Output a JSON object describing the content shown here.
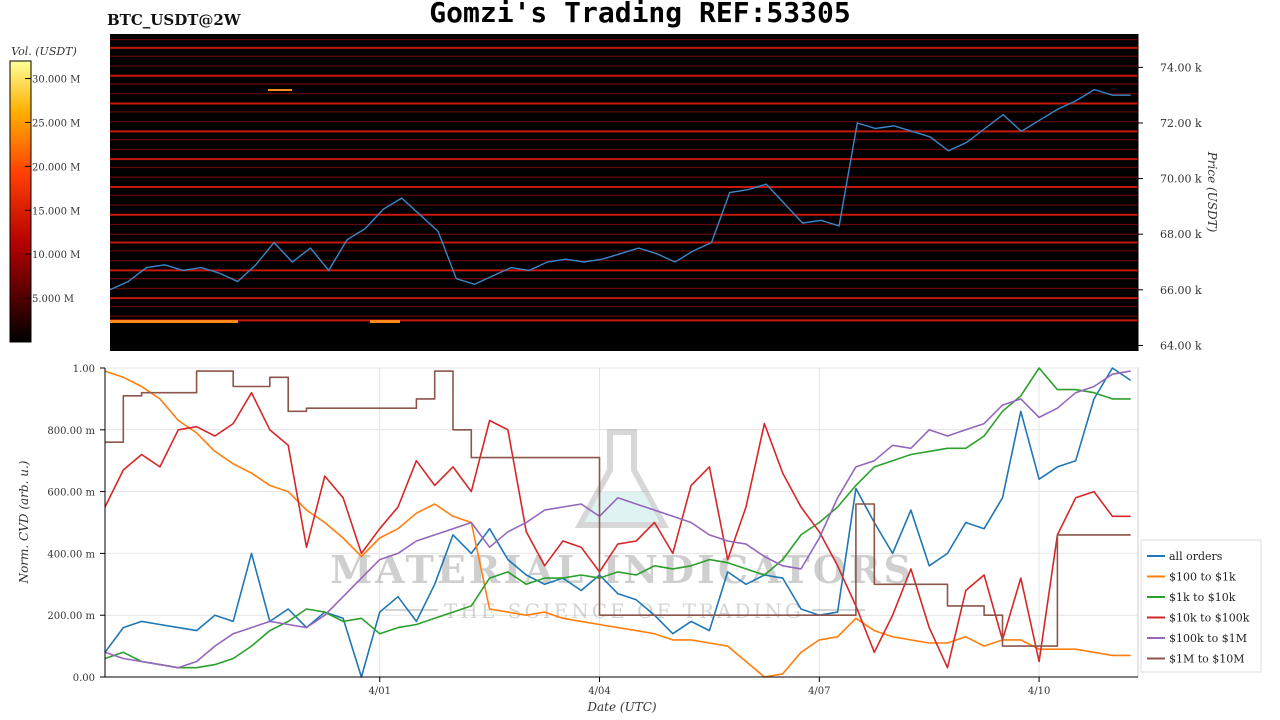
{
  "header": {
    "title": "Gomzi's Trading REF:53305",
    "symbol": "BTC_USDT@2W"
  },
  "colors": {
    "heatmap_bg": "#000000",
    "price_line": "#3a86c8",
    "series": [
      "#1f77b4",
      "#ff7f0e",
      "#2ca02c",
      "#d62728",
      "#9467bd",
      "#8c564b"
    ]
  },
  "watermark": {
    "brand": "MATERIAL INDICATORS",
    "tagline": "THE SCIENCE OF TRADING"
  },
  "chart_data": [
    {
      "type": "heatmap",
      "title": "",
      "ylabel": "Price (USDT)",
      "ylim": [
        63800,
        75200
      ],
      "y_ticks": [
        64000,
        66000,
        68000,
        70000,
        72000,
        74000
      ],
      "y_tick_labels": [
        "64.00 k",
        "66.00 k",
        "68.00 k",
        "70.00 k",
        "72.00 k",
        "74.00 k"
      ],
      "colorbar": {
        "label": "Vol. (USDT)",
        "ticks": [
          "5.000 M",
          "10.000 M",
          "15.000 M",
          "20.000 M",
          "25.000 M",
          "30.000 M"
        ],
        "tick_values": [
          5,
          10,
          15,
          20,
          25,
          30
        ],
        "range": [
          0,
          32
        ]
      },
      "liquidity_levels": [
        64900,
        65050,
        65400,
        65700,
        66050,
        66400,
        66700,
        67050,
        67400,
        67700,
        68000,
        68350,
        68700,
        69050,
        69400,
        69700,
        70050,
        70400,
        70700,
        71050,
        71400,
        71700,
        72050,
        72400,
        72700,
        73050,
        73400,
        73700,
        74050,
        74400,
        74700,
        75000
      ],
      "price_series_x_days": [
        0,
        0.5,
        1,
        1.5,
        2,
        2.5,
        3,
        3.5,
        4,
        4.5,
        5,
        5.5,
        6,
        6.5,
        7,
        7.5,
        8,
        8.5,
        9,
        9.5,
        10,
        10.5,
        11,
        11.5,
        12,
        12.5,
        13,
        13.5,
        14,
        14.5,
        15,
        15.5,
        16,
        16.5,
        17,
        17.5,
        18,
        18.5,
        19,
        19.5,
        20,
        20.5,
        21,
        21.5,
        22,
        22.5,
        23,
        23.5,
        24,
        24.5,
        25,
        25.5,
        26,
        26.5,
        27,
        27.5,
        28
      ],
      "price_series": [
        66000,
        66300,
        66800,
        66900,
        66700,
        66800,
        66600,
        66300,
        66900,
        67700,
        67000,
        67500,
        66700,
        67800,
        68200,
        68900,
        69300,
        68700,
        68100,
        66400,
        66200,
        66500,
        66800,
        66700,
        67000,
        67100,
        67000,
        67100,
        67300,
        67500,
        67300,
        67000,
        67400,
        67700,
        69500,
        69600,
        69800,
        69100,
        68400,
        68500,
        68300,
        72000,
        71800,
        71900,
        71700,
        71500,
        71000,
        71300,
        71800,
        72300,
        71700,
        72100,
        72500,
        72800,
        73200,
        73000,
        73000
      ]
    },
    {
      "type": "line",
      "title": "",
      "xlabel": "Date (UTC)",
      "ylabel": "Norm. CVD (arb. u.)",
      "ylim": [
        0,
        1
      ],
      "y_ticks": [
        0,
        0.2,
        0.4,
        0.6,
        0.8,
        1.0
      ],
      "y_tick_labels": [
        "0.00",
        "200.00 m",
        "400.00 m",
        "600.00 m",
        "800.00 m",
        "1.00"
      ],
      "x_ticks_days": [
        7.5,
        13.5,
        19.5,
        25.5
      ],
      "x_tick_labels": [
        "4/01",
        "4/04",
        "4/07",
        "4/10"
      ],
      "x_range_days": [
        0,
        28.2
      ],
      "legend_position": "bottom-right",
      "x": [
        0,
        0.5,
        1,
        1.5,
        2,
        2.5,
        3,
        3.5,
        4,
        4.5,
        5,
        5.5,
        6,
        6.5,
        7,
        7.5,
        8,
        8.5,
        9,
        9.5,
        10,
        10.5,
        11,
        11.5,
        12,
        12.5,
        13,
        13.5,
        14,
        14.5,
        15,
        15.5,
        16,
        16.5,
        17,
        17.5,
        18,
        18.5,
        19,
        19.5,
        20,
        20.5,
        21,
        21.5,
        22,
        22.5,
        23,
        23.5,
        24,
        24.5,
        25,
        25.5,
        26,
        26.5,
        27,
        27.5,
        28
      ],
      "series": [
        {
          "name": "all orders",
          "values": [
            0.08,
            0.16,
            0.18,
            0.17,
            0.16,
            0.15,
            0.2,
            0.18,
            0.4,
            0.18,
            0.22,
            0.16,
            0.21,
            0.19,
            0.0,
            0.21,
            0.26,
            0.18,
            0.3,
            0.46,
            0.4,
            0.48,
            0.38,
            0.33,
            0.3,
            0.32,
            0.28,
            0.33,
            0.27,
            0.25,
            0.2,
            0.14,
            0.18,
            0.15,
            0.34,
            0.3,
            0.33,
            0.32,
            0.22,
            0.2,
            0.21,
            0.61,
            0.5,
            0.4,
            0.54,
            0.36,
            0.4,
            0.5,
            0.48,
            0.58,
            0.86,
            0.64,
            0.68,
            0.7,
            0.9,
            1.0,
            0.96
          ]
        },
        {
          "name": "$100 to $1k",
          "values": [
            0.99,
            0.97,
            0.94,
            0.9,
            0.83,
            0.79,
            0.73,
            0.69,
            0.66,
            0.62,
            0.6,
            0.54,
            0.5,
            0.45,
            0.39,
            0.45,
            0.48,
            0.53,
            0.56,
            0.52,
            0.5,
            0.22,
            0.21,
            0.2,
            0.21,
            0.19,
            0.18,
            0.17,
            0.16,
            0.15,
            0.14,
            0.12,
            0.12,
            0.11,
            0.1,
            0.05,
            0.0,
            0.01,
            0.08,
            0.12,
            0.13,
            0.19,
            0.15,
            0.13,
            0.12,
            0.11,
            0.11,
            0.13,
            0.1,
            0.12,
            0.12,
            0.09,
            0.09,
            0.09,
            0.08,
            0.07,
            0.07
          ]
        },
        {
          "name": "$1k to $10k",
          "values": [
            0.06,
            0.08,
            0.05,
            0.04,
            0.03,
            0.03,
            0.04,
            0.06,
            0.1,
            0.15,
            0.18,
            0.22,
            0.21,
            0.18,
            0.19,
            0.14,
            0.16,
            0.17,
            0.19,
            0.21,
            0.23,
            0.32,
            0.34,
            0.3,
            0.32,
            0.32,
            0.33,
            0.32,
            0.34,
            0.33,
            0.36,
            0.35,
            0.36,
            0.38,
            0.37,
            0.35,
            0.33,
            0.38,
            0.46,
            0.5,
            0.55,
            0.62,
            0.68,
            0.7,
            0.72,
            0.73,
            0.74,
            0.74,
            0.78,
            0.86,
            0.91,
            1.0,
            0.93,
            0.93,
            0.92,
            0.9,
            0.9
          ]
        },
        {
          "name": "$10k to $100k",
          "values": [
            0.55,
            0.67,
            0.72,
            0.68,
            0.8,
            0.81,
            0.78,
            0.82,
            0.92,
            0.8,
            0.75,
            0.42,
            0.65,
            0.58,
            0.4,
            0.48,
            0.55,
            0.7,
            0.62,
            0.68,
            0.6,
            0.83,
            0.8,
            0.47,
            0.36,
            0.44,
            0.42,
            0.34,
            0.43,
            0.44,
            0.5,
            0.4,
            0.62,
            0.68,
            0.38,
            0.55,
            0.82,
            0.66,
            0.55,
            0.47,
            0.36,
            0.23,
            0.08,
            0.2,
            0.35,
            0.16,
            0.03,
            0.28,
            0.33,
            0.12,
            0.32,
            0.05,
            0.46,
            0.58,
            0.6,
            0.52,
            0.52
          ]
        },
        {
          "name": "$100k to $1M",
          "values": [
            0.08,
            0.06,
            0.05,
            0.04,
            0.03,
            0.05,
            0.1,
            0.14,
            0.16,
            0.18,
            0.17,
            0.16,
            0.2,
            0.26,
            0.32,
            0.38,
            0.4,
            0.44,
            0.46,
            0.48,
            0.5,
            0.42,
            0.47,
            0.5,
            0.54,
            0.55,
            0.56,
            0.52,
            0.58,
            0.56,
            0.54,
            0.52,
            0.5,
            0.46,
            0.44,
            0.43,
            0.39,
            0.36,
            0.35,
            0.45,
            0.58,
            0.68,
            0.7,
            0.75,
            0.74,
            0.8,
            0.78,
            0.8,
            0.82,
            0.88,
            0.9,
            0.84,
            0.87,
            0.92,
            0.94,
            0.98,
            0.99
          ]
        },
        {
          "name": "$1M to $10M",
          "values": [
            0.76,
            0.91,
            0.92,
            0.92,
            0.92,
            0.99,
            0.99,
            0.94,
            0.94,
            0.97,
            0.86,
            0.87,
            0.87,
            0.87,
            0.87,
            0.87,
            0.87,
            0.9,
            0.99,
            0.8,
            0.71,
            0.71,
            0.71,
            0.71,
            0.71,
            0.71,
            0.71,
            0.2,
            0.2,
            0.2,
            0.2,
            0.2,
            0.2,
            0.2,
            0.2,
            0.2,
            0.2,
            0.2,
            0.2,
            0.2,
            0.2,
            0.56,
            0.3,
            0.3,
            0.3,
            0.3,
            0.23,
            0.23,
            0.2,
            0.1,
            0.1,
            0.1,
            0.46,
            0.46,
            0.46,
            0.46,
            0.46
          ]
        }
      ]
    }
  ]
}
